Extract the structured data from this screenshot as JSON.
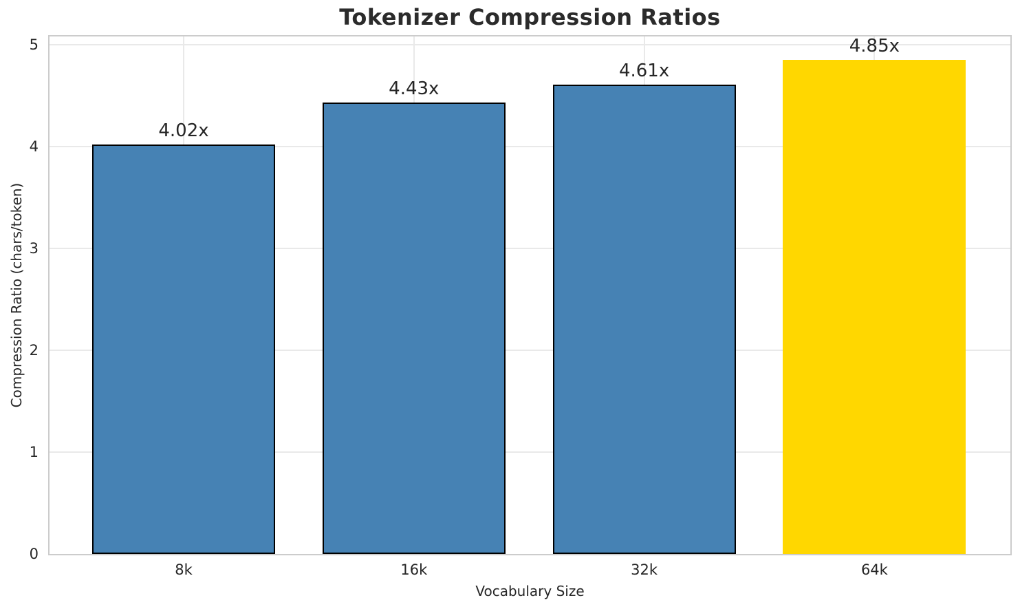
{
  "chart_data": {
    "type": "bar",
    "title": "Tokenizer Compression Ratios",
    "xlabel": "Vocabulary Size",
    "ylabel": "Compression Ratio (chars/token)",
    "categories": [
      "8k",
      "16k",
      "32k",
      "64k"
    ],
    "values": [
      4.02,
      4.43,
      4.61,
      4.85
    ],
    "bar_labels": [
      "4.02x",
      "4.43x",
      "4.61x",
      "4.85x"
    ],
    "bar_colors": [
      "#4682B4",
      "#4682B4",
      "#4682B4",
      "#FFD700"
    ],
    "bar_edge_colors": [
      "#000000",
      "#000000",
      "#000000",
      "#FFD700"
    ],
    "highlighted_category": "64k",
    "yticks": [
      0,
      1,
      2,
      3,
      4,
      5
    ],
    "ylim": [
      0,
      5.08
    ],
    "grid": true,
    "legend_position": "none",
    "colors": {
      "bar_default": "#4682B4",
      "bar_highlight": "#FFD700",
      "grid": "#E9E9E9",
      "spine": "#CCCCCC",
      "text": "#262626",
      "title": "#2B2B2B",
      "background": "#FFFFFF"
    }
  }
}
